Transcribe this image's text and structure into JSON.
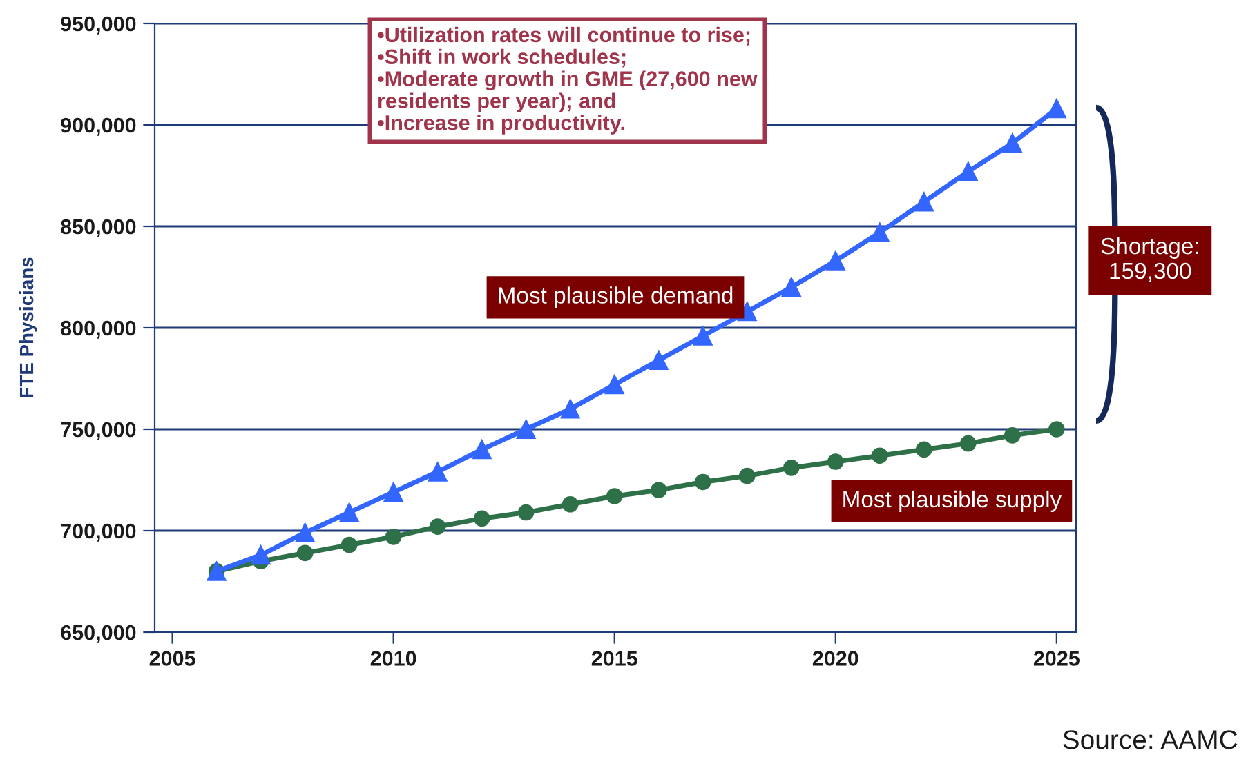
{
  "chart_data": {
    "type": "line",
    "ylabel": "FTE Physicians",
    "x": [
      2006,
      2007,
      2008,
      2009,
      2010,
      2011,
      2012,
      2013,
      2014,
      2015,
      2016,
      2017,
      2018,
      2019,
      2020,
      2021,
      2022,
      2023,
      2024,
      2025
    ],
    "series": [
      {
        "name": "Most plausible demand",
        "color": "#3366ff",
        "marker": "triangle",
        "values": [
          680000,
          688000,
          699000,
          709000,
          719000,
          729000,
          740000,
          750000,
          760000,
          772000,
          784000,
          796000,
          808000,
          820000,
          833000,
          847000,
          862000,
          877000,
          891000,
          908000
        ]
      },
      {
        "name": "Most plausible supply",
        "color": "#2e7048",
        "marker": "circle",
        "values": [
          680000,
          685000,
          689000,
          693000,
          697000,
          702000,
          706000,
          709000,
          713000,
          717000,
          720000,
          724000,
          727000,
          731000,
          734000,
          737000,
          740000,
          743000,
          747000,
          750000
        ]
      }
    ],
    "xlim": [
      2004.6,
      2025.44
    ],
    "xticks": [
      2005,
      2010,
      2015,
      2020,
      2025
    ],
    "ylim": [
      650000,
      950000
    ],
    "yticks": [
      {
        "value": 650000,
        "label": "650,000"
      },
      {
        "value": 700000,
        "label": "700,000"
      },
      {
        "value": 750000,
        "label": "750,000"
      },
      {
        "value": 800000,
        "label": "800,000"
      },
      {
        "value": 850000,
        "label": "850,000"
      },
      {
        "value": 900000,
        "label": "900,000"
      },
      {
        "value": 950000,
        "label": "950,000"
      }
    ],
    "grid": "y",
    "legend": false,
    "line_style": "solid",
    "annotations": [
      "•Utilization rates will continue to rise;\n•Shift in work schedules;\n•Moderate growth in GME (27,600 new\nresidents per year); and\n•Increase in productivity.",
      "Shortage:\n159,300",
      "Source: AAMC"
    ]
  }
}
